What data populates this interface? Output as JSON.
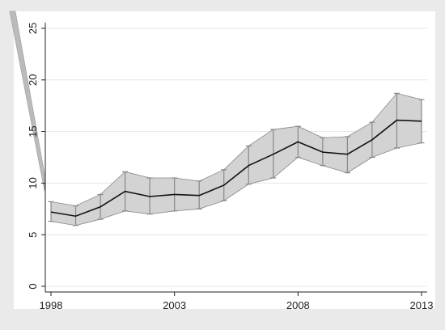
{
  "chart_data": {
    "type": "line",
    "title": "",
    "xlabel": "",
    "ylabel": "",
    "x": [
      1998,
      1999,
      2000,
      2001,
      2002,
      2003,
      2004,
      2005,
      2006,
      2007,
      2008,
      2009,
      2010,
      2011,
      2012,
      2013
    ],
    "series": [
      {
        "values": [
          7.2,
          6.8,
          7.7,
          9.2,
          8.7,
          8.9,
          8.8,
          9.8,
          11.7,
          12.8,
          14.0,
          13.0,
          12.8,
          14.2,
          16.1,
          16.0
        ],
        "lower": [
          6.3,
          5.9,
          6.5,
          7.3,
          7.0,
          7.3,
          7.5,
          8.3,
          9.9,
          10.5,
          12.5,
          11.7,
          11.0,
          12.5,
          13.4,
          13.9
        ],
        "upper": [
          8.2,
          7.8,
          8.9,
          11.1,
          10.5,
          10.5,
          10.2,
          11.3,
          13.6,
          15.2,
          15.5,
          14.4,
          14.5,
          15.9,
          18.7,
          18.1
        ]
      }
    ],
    "xticks": [
      "1998",
      "2003",
      "2008",
      "2013"
    ],
    "yticks": [
      "0",
      "5",
      "10",
      "15",
      "20",
      "25"
    ],
    "xlim": [
      1998,
      2013
    ],
    "ylim": [
      0,
      25
    ],
    "grid": true,
    "legend": "none",
    "colors": {
      "background": "#eaeaea",
      "plot_background": "#ffffff",
      "band_fill": "#d3d3d3",
      "band_stroke": "#888888",
      "line": "#111111",
      "grid": "#e4e4e4",
      "axis": "#222222"
    }
  }
}
